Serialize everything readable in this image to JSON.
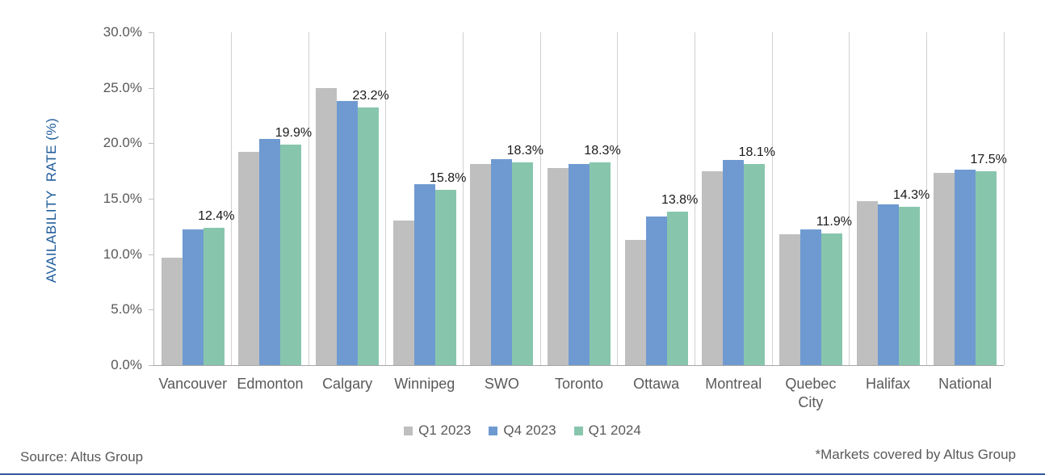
{
  "chart": {
    "y_axis_title": "AVAILABILITY  RATE (%)",
    "y_tick_labels": [
      "30.0%",
      "25.0%",
      "20.0%",
      "15.0%",
      "10.0%",
      "5.0%",
      "0.0%"
    ]
  },
  "chart_data": {
    "type": "bar",
    "title": "",
    "xlabel": "",
    "ylabel": "AVAILABILITY RATE (%)",
    "ylim": [
      0,
      30
    ],
    "ytick_step_pct": 5,
    "grid": "vertical category separators only",
    "legend_position": "bottom-center",
    "categories": [
      "Vancouver",
      "Edmonton",
      "Calgary",
      "Winnipeg",
      "SWO",
      "Toronto",
      "Ottawa",
      "Montreal",
      "Quebec City",
      "Halifax",
      "National"
    ],
    "series": [
      {
        "name": "Q1 2023",
        "color": "#BFBFBF",
        "values": [
          9.7,
          19.2,
          25.0,
          13.0,
          18.1,
          17.8,
          11.3,
          17.5,
          11.8,
          14.8,
          17.3
        ]
      },
      {
        "name": "Q4 2023",
        "color": "#6F9AD1",
        "values": [
          12.2,
          20.4,
          23.8,
          16.3,
          18.6,
          18.1,
          13.4,
          18.5,
          12.2,
          14.5,
          17.6
        ]
      },
      {
        "name": "Q1 2024",
        "color": "#87C6AD",
        "values": [
          12.4,
          19.9,
          23.2,
          15.8,
          18.3,
          18.3,
          13.8,
          18.1,
          11.9,
          14.3,
          17.5
        ],
        "data_labels": [
          "12.4%",
          "19.9%",
          "23.2%",
          "15.8%",
          "18.3%",
          "18.3%",
          "13.8%",
          "18.1%",
          "11.9%",
          "14.3%",
          "17.5%"
        ]
      }
    ]
  },
  "footer": {
    "source": "Source: Altus Group",
    "footnote": "*Markets covered by Altus Group"
  },
  "colors": {
    "axis_text": "#595959",
    "data_label_text": "#1A1A1A",
    "y_title_text": "#1F5C9B",
    "gridline": "#D1D1D1",
    "axis_line": "#BFBFBF",
    "baseline": "#A6A6A6",
    "bottom_rule": "#39589E",
    "background": "#FFFFFF"
  }
}
